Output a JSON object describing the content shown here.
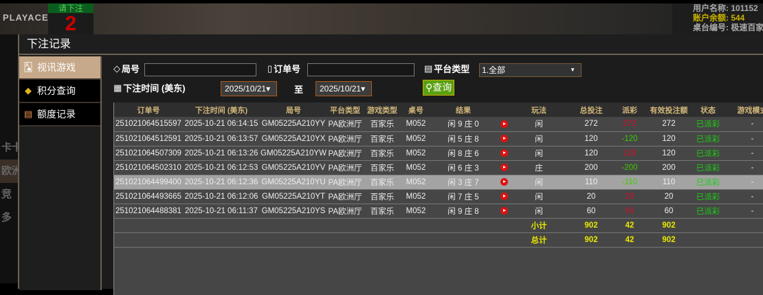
{
  "background": {
    "logo": "PLAYACE",
    "bet_prompt": "请下注",
    "countdown": "2",
    "user_lines": [
      "用户名称: 101152",
      "账户余额: 544",
      "桌台编号: 极速百家"
    ],
    "left_items": [
      "卡卡",
      "欧洲",
      "竞",
      "多"
    ]
  },
  "modal": {
    "title": "下注记录",
    "sidebar": [
      {
        "label": "视讯游戏",
        "icon": "cards-icon",
        "active": true
      },
      {
        "label": "积分查询",
        "icon": "diamond-icon",
        "active": false
      },
      {
        "label": "额度记录",
        "icon": "document-icon",
        "active": false
      }
    ],
    "filters": {
      "round_label": "局号",
      "round_value": "",
      "order_label": "订单号",
      "order_value": "",
      "platform_label": "平台类型",
      "platform_value": "1.全部",
      "time_label": "下注时间 (美东)",
      "date_from": "2025/10/21",
      "to_label": "至",
      "date_to": "2025/10/21",
      "query_label": "查询"
    },
    "table": {
      "headers": [
        "订单号",
        "下注时间 (美东)",
        "局号",
        "平台类型",
        "游戏类型",
        "桌号",
        "结果",
        "",
        "玩法",
        "总投注",
        "派彩",
        "有效投注额",
        "状态",
        "游戏模式"
      ],
      "rows": [
        [
          "251021064515597",
          "2025-10-21 06:14:15",
          "GM05225A210YY",
          "PA欧洲厅",
          "百家乐",
          "M052",
          "闲 9 庄 0",
          "闲",
          "272",
          "272",
          "272",
          "已派彩",
          "-"
        ],
        [
          "251021064512591",
          "2025-10-21 06:13:57",
          "GM05225A210YX",
          "PA欧洲厅",
          "百家乐",
          "M052",
          "闲 5 庄 8",
          "闲",
          "120",
          "-120",
          "120",
          "已派彩",
          "-"
        ],
        [
          "251021064507309",
          "2025-10-21 06:13:26",
          "GM05225A210YW",
          "PA欧洲厅",
          "百家乐",
          "M052",
          "闲 8 庄 6",
          "闲",
          "120",
          "120",
          "120",
          "已派彩",
          "-"
        ],
        [
          "251021064502310",
          "2025-10-21 06:12:53",
          "GM05225A210YV",
          "PA欧洲厅",
          "百家乐",
          "M052",
          "闲 6 庄 3",
          "庄",
          "200",
          "-200",
          "200",
          "已派彩",
          "-"
        ],
        [
          "251021064499400",
          "2025-10-21 06:12:36",
          "GM05225A210YU",
          "PA欧洲厅",
          "百家乐",
          "M052",
          "闲 3 庄 7",
          "闲",
          "110",
          "-110",
          "110",
          "已派彩",
          "-"
        ],
        [
          "251021064493665",
          "2025-10-21 06:12:06",
          "GM05225A210YT",
          "PA欧洲厅",
          "百家乐",
          "M052",
          "闲 7 庄 5",
          "闲",
          "20",
          "20",
          "20",
          "已派彩",
          "-"
        ],
        [
          "251021064488381",
          "2025-10-21 06:11:37",
          "GM05225A210YS",
          "PA欧洲厅",
          "百家乐",
          "M052",
          "闲 9 庄 8",
          "闲",
          "60",
          "60",
          "60",
          "已派彩",
          "-"
        ]
      ],
      "highlighted_row": 4,
      "subtotal": {
        "label": "小计",
        "total_bet": "902",
        "payout": "42",
        "valid_bet": "902"
      },
      "total": {
        "label": "总计",
        "total_bet": "902",
        "payout": "42",
        "valid_bet": "902"
      }
    }
  },
  "colors": {
    "accent": "#c6a98a",
    "header_text": "#d2b77a",
    "win": "#d0102a",
    "loss": "#3ccc00",
    "status": "#1ccc14",
    "sum": "#e8e800",
    "query_button": "#5aa010"
  }
}
